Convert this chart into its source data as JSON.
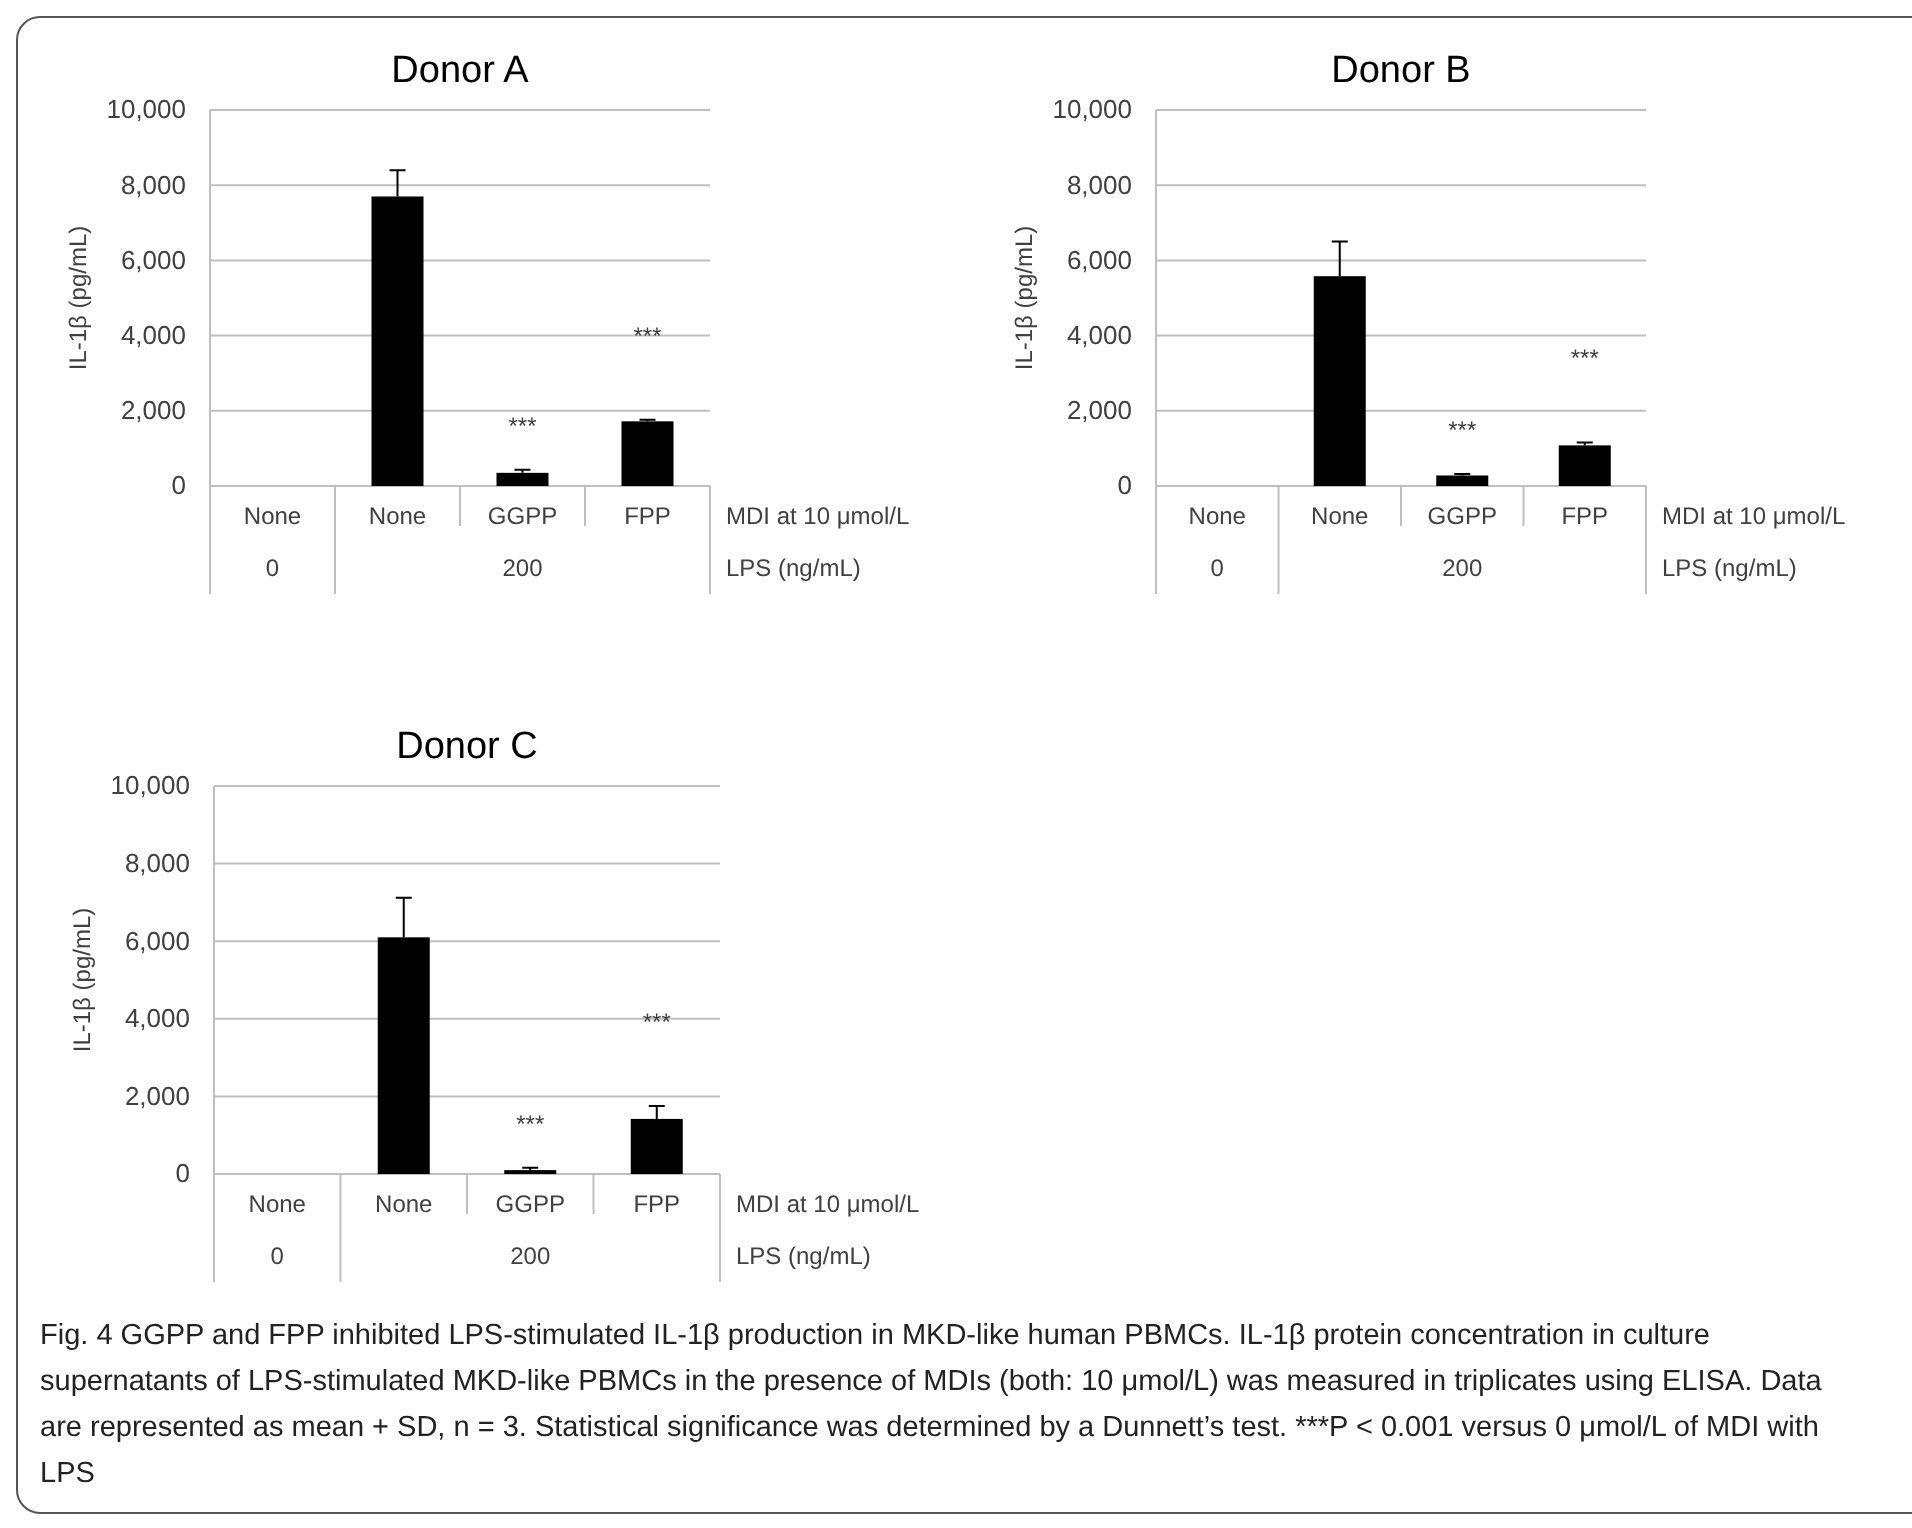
{
  "chart_data": [
    {
      "type": "bar",
      "title": "Donor A",
      "ylabel": "IL-1β (pg/mL)",
      "xlabel": "MDI at 10 μmol/L",
      "categories": [
        "None",
        "None",
        "GGPP",
        "FPP"
      ],
      "values": [
        0,
        7700,
        350,
        1720
      ],
      "errors": [
        null,
        [
          7700,
          8400
        ],
        [
          350,
          430
        ],
        [
          1720,
          1760
        ]
      ],
      "color": "#000000",
      "ylim": [
        0,
        10000
      ],
      "yticks": [
        {
          "value": 0,
          "label": "0"
        },
        {
          "value": 2000,
          "label": "2,000"
        },
        {
          "value": 4000,
          "label": "4,000"
        },
        {
          "value": 6000,
          "label": "6,000"
        },
        {
          "value": 8000,
          "label": "8,000"
        },
        {
          "value": 10000,
          "label": "10,000"
        }
      ],
      "grid": "y",
      "annotations": [
        "0",
        "200",
        "LPS (ng/mL)",
        "***",
        "***"
      ]
    },
    {
      "type": "bar",
      "title": "Donor B",
      "ylabel": "IL-1β (pg/mL)",
      "xlabel": "MDI at 10 μmol/L",
      "categories": [
        "None",
        "None",
        "GGPP",
        "FPP"
      ],
      "values": [
        0,
        5580,
        280,
        1080
      ],
      "errors": [
        null,
        [
          5580,
          6500
        ],
        [
          280,
          320
        ],
        [
          1080,
          1160
        ]
      ],
      "color": "#000000",
      "ylim": [
        0,
        10000
      ],
      "yticks": [
        {
          "value": 0,
          "label": "0"
        },
        {
          "value": 2000,
          "label": "2,000"
        },
        {
          "value": 4000,
          "label": "4,000"
        },
        {
          "value": 6000,
          "label": "6,000"
        },
        {
          "value": 8000,
          "label": "8,000"
        },
        {
          "value": 10000,
          "label": "10,000"
        }
      ],
      "grid": "y",
      "annotations": [
        "0",
        "200",
        "LPS (ng/mL)",
        "***",
        "***"
      ]
    },
    {
      "type": "bar",
      "title": "Donor C",
      "ylabel": "IL-1β (pg/mL)",
      "xlabel": "MDI at 10 μmol/L",
      "categories": [
        "None",
        "None",
        "GGPP",
        "FPP"
      ],
      "values": [
        0,
        6100,
        100,
        1420
      ],
      "errors": [
        null,
        [
          6100,
          7120
        ],
        [
          100,
          160
        ],
        [
          1420,
          1750
        ]
      ],
      "color": "#000000",
      "ylim": [
        0,
        10000
      ],
      "yticks": [
        {
          "value": 0,
          "label": "0"
        },
        {
          "value": 2000,
          "label": "2,000"
        },
        {
          "value": 4000,
          "label": "4,000"
        },
        {
          "value": 6000,
          "label": "6,000"
        },
        {
          "value": 8000,
          "label": "8,000"
        },
        {
          "value": 10000,
          "label": "10,000"
        }
      ],
      "grid": "y",
      "annotations": [
        "0",
        "200",
        "LPS (ng/mL)",
        "***",
        "***",
        "Fig. 4  GGPP and FPP inhibited LPS-stimulated IL-1β production in MKD-like human PBMCs. IL-1β protein concentration in culture supernatants of LPS-stimulated MKD-like PBMCs in the presence of MDIs (both: 10 μmol/L) was measured in triplicates using ELISA. Data are represented as mean + SD, n = 3. Statistical significance was determined by a Dunnett’s test. ***P < 0.001 versus 0 μmol/L of MDI with LPS"
      ]
    }
  ]
}
